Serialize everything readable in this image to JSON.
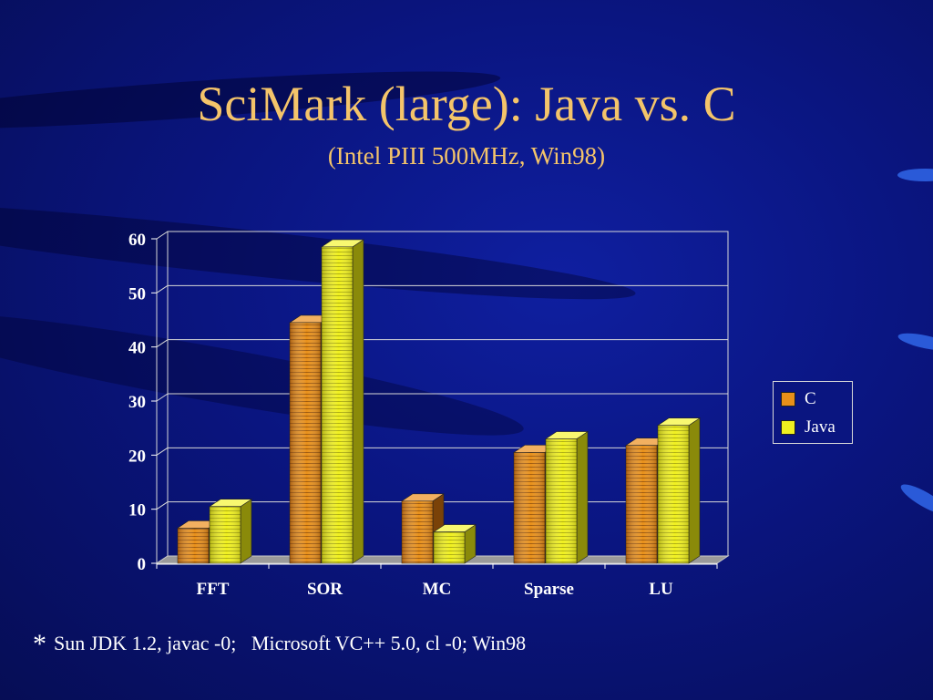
{
  "slide": {
    "title": "SciMark (large): Java vs. C",
    "subtitle": "(Intel PIII 500MHz, Win98)",
    "footnote_marker": "*",
    "footnote": "Sun JDK 1.2, javac -0;   Microsoft VC++ 5.0, cl -0; Win98"
  },
  "colors": {
    "background": "#0a1580",
    "title_text": "#f4c46a",
    "c_series": "#e8901a",
    "java_series": "#f0f020"
  },
  "chart_data": {
    "type": "bar",
    "title": "",
    "xlabel": "",
    "ylabel": "",
    "categories": [
      "FFT",
      "SOR",
      "MC",
      "Sparse",
      "LU"
    ],
    "series": [
      {
        "name": "C",
        "values": [
          6.5,
          44.5,
          11.5,
          20.5,
          21.8
        ]
      },
      {
        "name": "Java",
        "values": [
          10.5,
          58.5,
          5.8,
          23,
          25.5
        ]
      }
    ],
    "ylim": [
      0,
      60
    ],
    "yticks": [
      0,
      10,
      20,
      30,
      40,
      50,
      60
    ],
    "grid": true,
    "legend_position": "right",
    "style": "3d-bar"
  }
}
